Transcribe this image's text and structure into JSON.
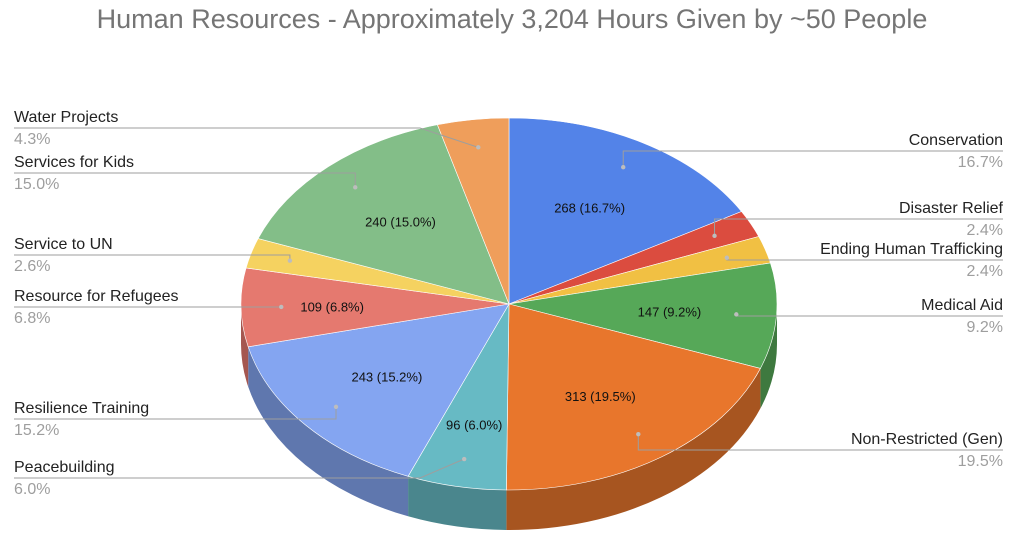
{
  "chart_data": {
    "type": "pie",
    "title": "Human Resources - Approximately 3,204 Hours Given by ~50 People",
    "three_d": true,
    "legend": "outside-labels",
    "slices": [
      {
        "label": "Conservation",
        "value": 268,
        "inner_label": "268 (16.7%)",
        "percent_label": "16.7%",
        "color": "#5383E8"
      },
      {
        "label": "Disaster Relief",
        "value": 38,
        "inner_label": "",
        "percent_label": "2.4%",
        "color": "#DB4C3F"
      },
      {
        "label": "Ending Human Trafficking",
        "value": 38,
        "inner_label": "",
        "percent_label": "2.4%",
        "color": "#F1C043"
      },
      {
        "label": "Medical Aid",
        "value": 147,
        "inner_label": "147 (9.2%)",
        "percent_label": "9.2%",
        "color": "#56A858"
      },
      {
        "label": "Non-Restricted (Gen)",
        "value": 313,
        "inner_label": "313 (19.5%)",
        "percent_label": "19.5%",
        "color": "#E8762C"
      },
      {
        "label": "Peacebuilding",
        "value": 96,
        "inner_label": "96 (6.0%)",
        "percent_label": "6.0%",
        "color": "#67BAC4"
      },
      {
        "label": "Resilience Training",
        "value": 243,
        "inner_label": "243 (15.2%)",
        "percent_label": "15.2%",
        "color": "#84A5F1"
      },
      {
        "label": "Resource for Refugees",
        "value": 109,
        "inner_label": "109 (6.8%)",
        "percent_label": "6.8%",
        "color": "#E5796F"
      },
      {
        "label": "Service to UN",
        "value": 42,
        "inner_label": "",
        "percent_label": "2.6%",
        "color": "#F5D260"
      },
      {
        "label": "Services for Kids",
        "value": 240,
        "inner_label": "240 (15.0%)",
        "percent_label": "15.0%",
        "color": "#83BE88"
      },
      {
        "label": "Water Projects",
        "value": 69,
        "inner_label": "",
        "percent_label": "4.3%",
        "color": "#EF9E5B"
      }
    ]
  }
}
